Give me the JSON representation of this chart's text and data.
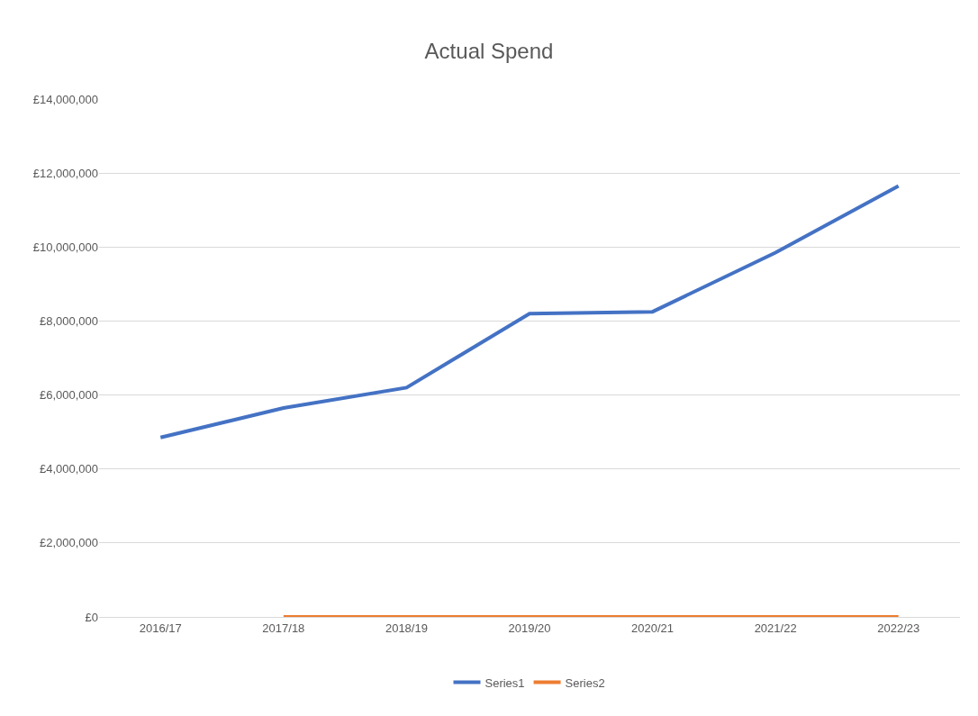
{
  "chart_data": {
    "type": "line",
    "title": "Actual Spend",
    "categories": [
      "2016/17",
      "2017/18",
      "2018/19",
      "2019/20",
      "2020/21",
      "2021/22",
      "2022/23"
    ],
    "series": [
      {
        "name": "Series1",
        "color": "#4472c4",
        "values": [
          4850000,
          5650000,
          6200000,
          8200000,
          8250000,
          9850000,
          11650000
        ]
      },
      {
        "name": "Series2",
        "color": "#ed7d31",
        "values": [
          null,
          0,
          0,
          0,
          0,
          0,
          0
        ]
      }
    ],
    "ylim": [
      0,
      14000000
    ],
    "yticks": [
      {
        "value": 0,
        "label": "£0"
      },
      {
        "value": 2000000,
        "label": "£2,000,000"
      },
      {
        "value": 4000000,
        "label": "£4,000,000"
      },
      {
        "value": 6000000,
        "label": "£6,000,000"
      },
      {
        "value": 8000000,
        "label": "£8,000,000"
      },
      {
        "value": 10000000,
        "label": "£10,000,000"
      },
      {
        "value": 12000000,
        "label": "£12,000,000"
      },
      {
        "value": 14000000,
        "label": "£14,000,000"
      }
    ],
    "grid": "y",
    "legend": "bottom",
    "marker": "none",
    "line_style": "solid"
  }
}
